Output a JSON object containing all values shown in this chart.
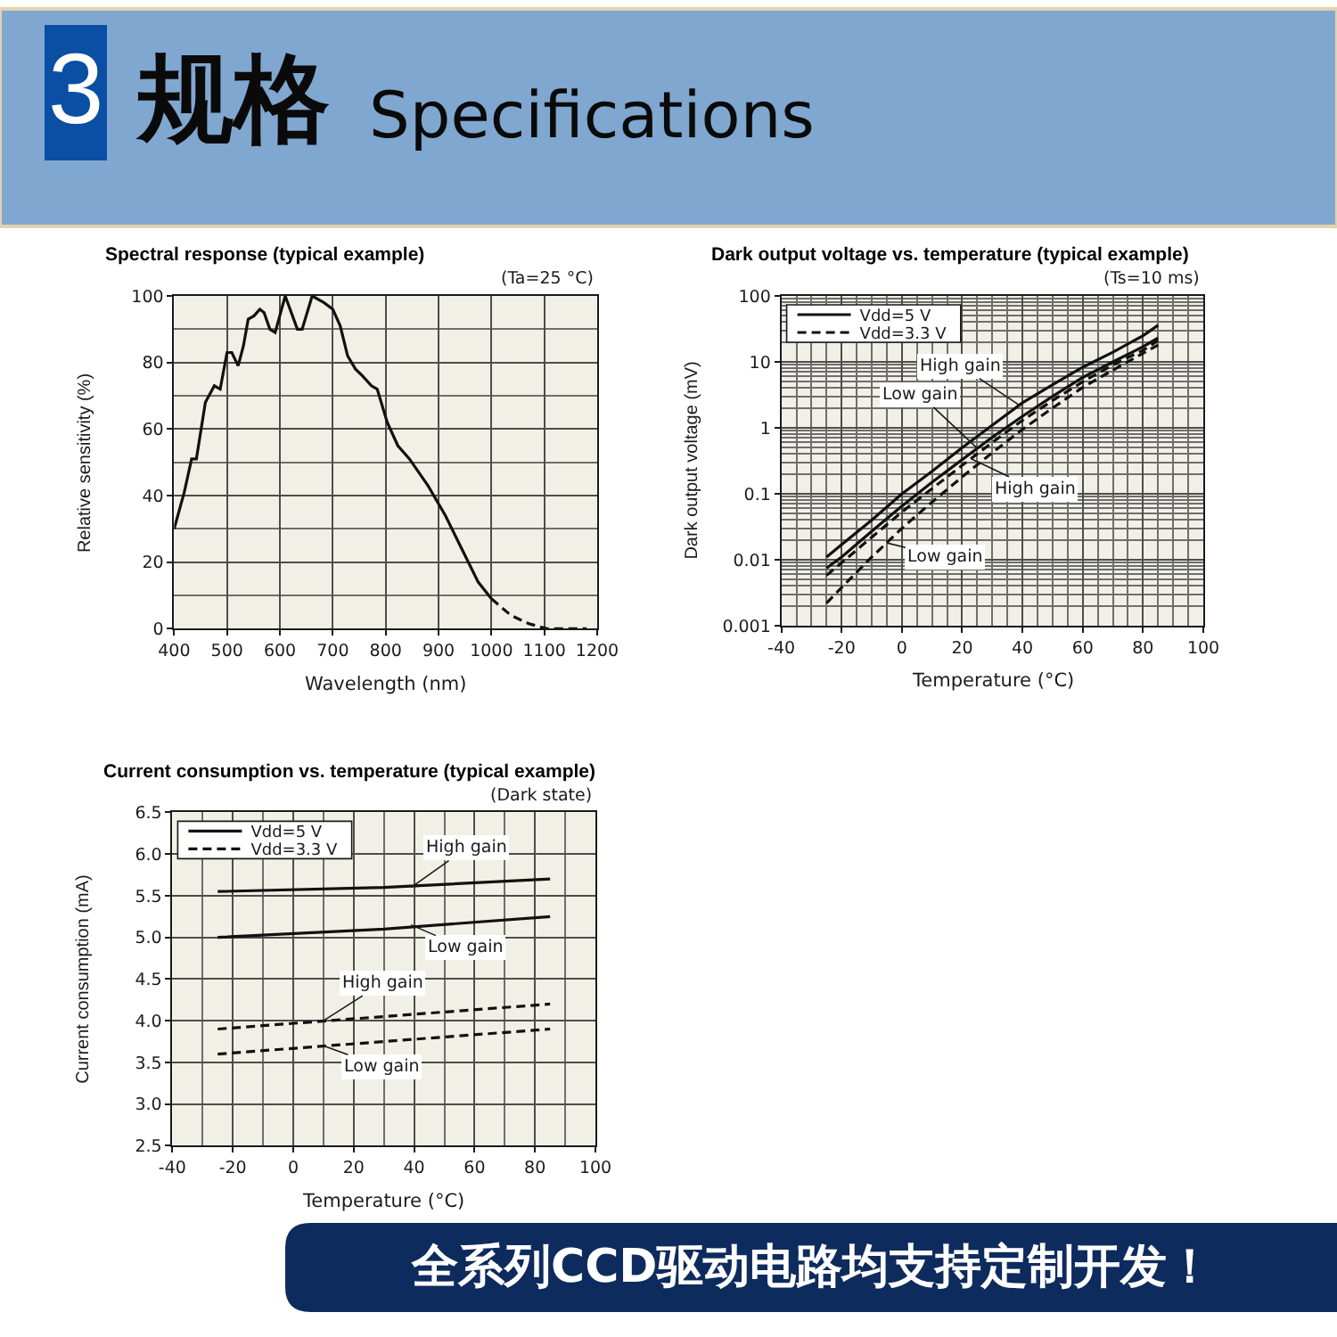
{
  "chart_data": [
    {
      "type": "other",
      "title": "规格",
      "subtitle": "Specifications",
      "annotations": [
        "3"
      ]
    },
    {
      "type": "line",
      "title": "Spectral response (typical example)",
      "xlabel": "Wavelength (nm)",
      "ylabel": "Relative sensitivity (%)",
      "annotations": [
        "(Ta=25 °C)"
      ],
      "series": [
        {
          "color": "#111111",
          "line_style": "solid",
          "x": [
            400,
            419,
            433,
            442,
            459,
            476,
            487,
            500,
            509,
            521,
            531,
            540,
            551,
            562,
            570,
            581,
            591,
            610,
            633,
            642,
            661,
            683,
            700,
            714,
            728,
            743,
            756,
            773,
            784,
            803,
            823,
            834,
            845,
            880,
            913,
            947,
            975,
            1000
          ],
          "values": [
            30,
            41,
            51,
            51,
            68,
            73,
            72,
            83,
            83,
            79,
            85,
            93,
            94,
            96,
            95,
            90,
            89,
            100,
            90,
            90,
            100,
            98,
            96,
            91,
            82,
            78,
            76,
            73,
            72,
            62,
            55,
            53,
            51,
            43,
            34,
            23,
            14,
            9
          ]
        },
        {
          "color": "#111111",
          "line_style": "dashed",
          "x": [
            1000,
            1037,
            1071,
            1105,
            1150,
            1180
          ],
          "values": [
            9,
            4,
            1.5,
            0,
            0,
            0
          ]
        }
      ],
      "xlim": [
        400,
        1200
      ],
      "xticks": [
        400,
        500,
        600,
        700,
        800,
        900,
        1000,
        1100,
        1200
      ],
      "ylim": [
        0,
        100
      ],
      "yticks": [
        0,
        20,
        40,
        60,
        80,
        100
      ],
      "grid": true
    },
    {
      "type": "line",
      "title": "Dark output voltage vs. temperature (typical example)",
      "xlabel": "Temperature (°C)",
      "ylabel": "Dark output voltage (mV)",
      "annotations": [
        "(Ts=10 ms)",
        {
          "text": "High gain",
          "x": 39,
          "y": 2.2
        },
        {
          "text": "Low gain",
          "x": 25,
          "y": 0.49
        },
        {
          "text": "High gain",
          "x": 23,
          "y": 0.34
        },
        {
          "text": "Low gain",
          "x": -5,
          "y": 0.018
        }
      ],
      "x": [
        -25,
        -20,
        -10,
        0,
        10,
        20,
        30,
        40,
        50,
        60,
        70,
        80,
        85
      ],
      "series": [
        {
          "name": "Vdd=5 V",
          "color": "#111111",
          "line_style": "solid",
          "values": [
            0.011,
            0.017,
            0.04,
            0.1,
            0.22,
            0.5,
            1.1,
            2.4,
            4.5,
            8.3,
            14,
            25,
            36
          ]
        },
        {
          "color": "#111111",
          "line_style": "solid",
          "values": [
            0.0075,
            0.011,
            0.027,
            0.065,
            0.15,
            0.33,
            0.72,
            1.5,
            3.0,
            5.8,
            10,
            17,
            23
          ]
        },
        {
          "name": "Vdd=3.3 V",
          "color": "#111111",
          "line_style": "dashed",
          "values": [
            0.0058,
            0.009,
            0.022,
            0.053,
            0.12,
            0.27,
            0.6,
            1.3,
            2.6,
            5.0,
            9,
            15,
            21
          ]
        },
        {
          "color": "#111111",
          "line_style": "dashed",
          "values": [
            0.0022,
            0.0038,
            0.011,
            0.03,
            0.075,
            0.18,
            0.42,
            0.95,
            2.0,
            4.1,
            7.5,
            13.5,
            18
          ]
        }
      ],
      "xlim": [
        -40,
        100
      ],
      "xticks": [
        -40,
        -20,
        0,
        20,
        40,
        60,
        80,
        100
      ],
      "ylim": [
        0.001,
        100
      ],
      "yticks": [
        0.001,
        0.01,
        0.1,
        1,
        10,
        100
      ],
      "log": "y",
      "grid": true,
      "legend": "top left"
    },
    {
      "type": "line",
      "title": "Current consumption vs. temperature (typical example)",
      "xlabel": "Temperature (°C)",
      "ylabel": "Current consumption (mA)",
      "annotations": [
        "(Dark state)",
        {
          "text": "High gain",
          "x": 39,
          "y": 5.6
        },
        {
          "text": "Low gain",
          "x": 39,
          "y": 5.15
        },
        {
          "text": "High gain",
          "x": 10,
          "y": 4.0
        },
        {
          "text": "Low gain",
          "x": 10,
          "y": 3.7
        }
      ],
      "x": [
        -25,
        30,
        85
      ],
      "series": [
        {
          "name": "Vdd=5 V",
          "color": "#111111",
          "line_style": "solid",
          "values": [
            5.55,
            5.6,
            5.7
          ]
        },
        {
          "color": "#111111",
          "line_style": "solid",
          "values": [
            5.0,
            5.1,
            5.25
          ]
        },
        {
          "name": "Vdd=3.3 V",
          "color": "#111111",
          "line_style": "dashed",
          "values": [
            3.9,
            4.05,
            4.2
          ]
        },
        {
          "color": "#111111",
          "line_style": "dashed",
          "values": [
            3.6,
            3.75,
            3.9
          ]
        }
      ],
      "xlim": [
        -40,
        100
      ],
      "xticks": [
        -40,
        -20,
        0,
        20,
        40,
        60,
        80,
        100
      ],
      "ylim": [
        2.5,
        6.5
      ],
      "yticks": [
        2.5,
        {
          "value": 3,
          "label": "3.0"
        },
        3.5,
        {
          "value": 4,
          "label": "4.0"
        },
        4.5,
        {
          "value": 5,
          "label": "5.0"
        },
        5.5,
        {
          "value": 6,
          "label": "6.0"
        },
        6.5
      ],
      "grid": true,
      "legend": "top left"
    },
    {
      "type": "other",
      "title": "全系列CCD驱动电路均支持定制开发！"
    }
  ]
}
